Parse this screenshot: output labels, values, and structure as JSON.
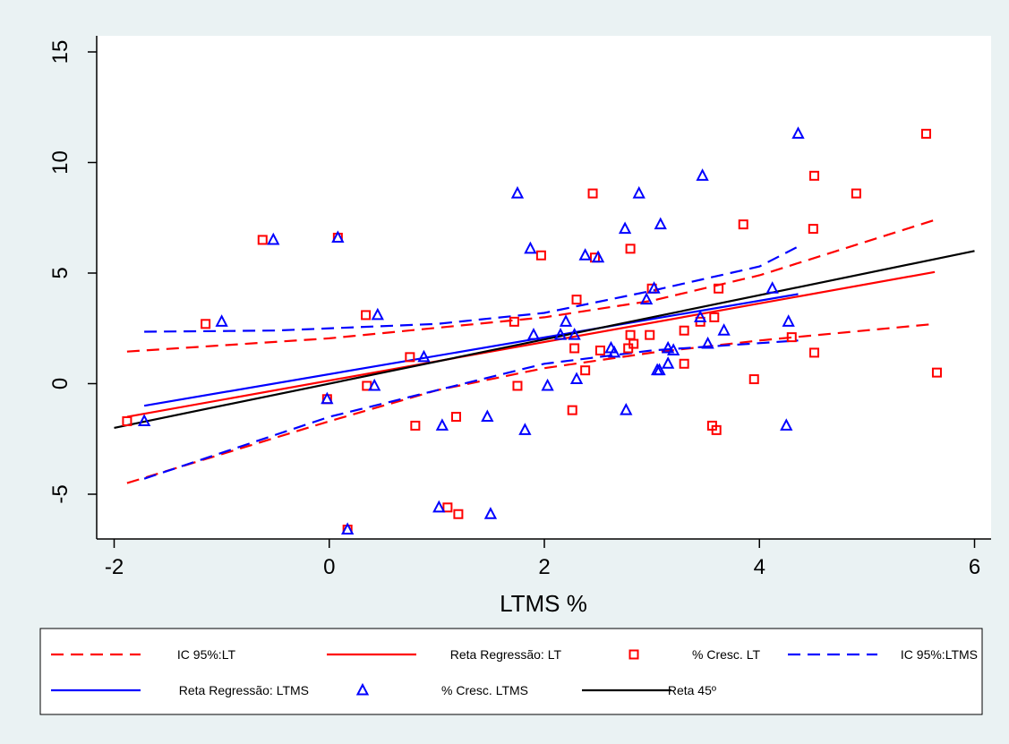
{
  "chart_data": {
    "type": "scatter",
    "xlabel": "LTMS %",
    "ylabel": "",
    "xlim": [
      -2,
      6
    ],
    "ylim": [
      -7,
      15
    ],
    "xticks": [
      -2,
      0,
      2,
      4,
      6
    ],
    "yticks": [
      -5,
      0,
      5,
      10,
      15
    ],
    "grid": false,
    "legend_position": "bottom",
    "colors": {
      "lt": "#ff0000",
      "ltms": "#0000ff",
      "ref": "#000000"
    },
    "legend": [
      {
        "label": "IC 95%:LT",
        "kind": "dashed",
        "color": "#ff0000"
      },
      {
        "label": "Reta Regressão: LT",
        "kind": "solid",
        "color": "#ff0000"
      },
      {
        "label": "% Cresc. LT",
        "kind": "square",
        "color": "#ff0000"
      },
      {
        "label": "IC 95%:LTMS",
        "kind": "dashed",
        "color": "#0000ff"
      },
      {
        "label": "Reta Regressão: LTMS",
        "kind": "solid",
        "color": "#0000ff"
      },
      {
        "label": "% Cresc. LTMS",
        "kind": "triangle",
        "color": "#0000ff"
      },
      {
        "label": "Reta 45º",
        "kind": "solid",
        "color": "#000000"
      }
    ],
    "series": [
      {
        "name": "% Cresc. LT",
        "marker": "square",
        "color": "#ff0000",
        "points": [
          [
            -1.88,
            -1.7
          ],
          [
            -1.15,
            2.7
          ],
          [
            -0.62,
            6.5
          ],
          [
            -0.02,
            -0.7
          ],
          [
            0.08,
            6.6
          ],
          [
            0.17,
            -6.6
          ],
          [
            0.34,
            3.1
          ],
          [
            0.35,
            -0.1
          ],
          [
            0.75,
            1.2
          ],
          [
            0.8,
            -1.9
          ],
          [
            1.1,
            -5.6
          ],
          [
            1.18,
            -1.5
          ],
          [
            1.2,
            -5.9
          ],
          [
            1.72,
            2.8
          ],
          [
            1.75,
            -0.1
          ],
          [
            1.97,
            5.8
          ],
          [
            2.26,
            -1.2
          ],
          [
            2.28,
            1.6
          ],
          [
            2.3,
            3.8
          ],
          [
            2.38,
            0.6
          ],
          [
            2.45,
            8.6
          ],
          [
            2.47,
            5.7
          ],
          [
            2.52,
            1.5
          ],
          [
            2.78,
            1.6
          ],
          [
            2.8,
            6.1
          ],
          [
            2.8,
            2.2
          ],
          [
            2.83,
            1.8
          ],
          [
            2.98,
            2.2
          ],
          [
            3.0,
            4.3
          ],
          [
            3.3,
            2.4
          ],
          [
            3.3,
            0.9
          ],
          [
            3.45,
            2.8
          ],
          [
            3.56,
            -1.9
          ],
          [
            3.58,
            3.0
          ],
          [
            3.6,
            -2.1
          ],
          [
            3.62,
            4.3
          ],
          [
            3.85,
            7.2
          ],
          [
            3.95,
            0.2
          ],
          [
            4.3,
            2.1
          ],
          [
            4.5,
            7.0
          ],
          [
            4.51,
            1.4
          ],
          [
            4.51,
            9.4
          ],
          [
            4.9,
            8.6
          ],
          [
            5.55,
            11.3
          ],
          [
            5.65,
            0.5
          ]
        ]
      },
      {
        "name": "% Cresc. LTMS",
        "marker": "triangle",
        "color": "#0000ff",
        "points": [
          [
            -1.72,
            -1.7
          ],
          [
            -1.0,
            2.8
          ],
          [
            -0.52,
            6.5
          ],
          [
            -0.02,
            -0.7
          ],
          [
            0.08,
            6.6
          ],
          [
            0.17,
            -6.6
          ],
          [
            0.42,
            -0.1
          ],
          [
            0.45,
            3.1
          ],
          [
            0.88,
            1.2
          ],
          [
            1.02,
            -5.6
          ],
          [
            1.05,
            -1.9
          ],
          [
            1.47,
            -1.5
          ],
          [
            1.5,
            -5.9
          ],
          [
            1.75,
            8.6
          ],
          [
            1.82,
            -2.1
          ],
          [
            1.87,
            6.1
          ],
          [
            1.9,
            2.2
          ],
          [
            2.03,
            -0.1
          ],
          [
            2.15,
            2.2
          ],
          [
            2.2,
            2.8
          ],
          [
            2.28,
            2.2
          ],
          [
            2.3,
            0.2
          ],
          [
            2.38,
            5.8
          ],
          [
            2.5,
            5.7
          ],
          [
            2.62,
            1.6
          ],
          [
            2.65,
            1.4
          ],
          [
            2.75,
            7.0
          ],
          [
            2.76,
            -1.2
          ],
          [
            2.88,
            8.6
          ],
          [
            2.95,
            3.8
          ],
          [
            3.02,
            4.3
          ],
          [
            3.05,
            0.6
          ],
          [
            3.07,
            0.6
          ],
          [
            3.08,
            7.2
          ],
          [
            3.15,
            0.9
          ],
          [
            3.15,
            1.6
          ],
          [
            3.2,
            1.5
          ],
          [
            3.45,
            3.0
          ],
          [
            3.47,
            9.4
          ],
          [
            3.52,
            1.8
          ],
          [
            3.67,
            2.4
          ],
          [
            4.12,
            4.3
          ],
          [
            4.25,
            -1.9
          ],
          [
            4.27,
            2.8
          ],
          [
            4.36,
            11.3
          ]
        ]
      }
    ],
    "lines": [
      {
        "name": "IC 95%:LT",
        "style": "dashed",
        "color": "#ff0000",
        "points": [
          [
            -1.88,
            1.45
          ],
          [
            0,
            2.05
          ],
          [
            2,
            3.0
          ],
          [
            3,
            3.75
          ],
          [
            4,
            4.9
          ],
          [
            5.63,
            7.4
          ]
        ]
      },
      {
        "name": "IC 95%:LT",
        "style": "dashed",
        "color": "#ff0000",
        "points": [
          [
            -1.88,
            -4.5
          ],
          [
            0,
            -1.7
          ],
          [
            1,
            -0.3
          ],
          [
            2,
            0.7
          ],
          [
            3,
            1.4
          ],
          [
            4,
            1.95
          ],
          [
            5.63,
            2.7
          ]
        ]
      },
      {
        "name": "Reta Regressão: LT",
        "style": "solid",
        "color": "#ff0000",
        "points": [
          [
            -1.88,
            -1.5
          ],
          [
            5.63,
            5.05
          ]
        ]
      },
      {
        "name": "IC 95%:LTMS",
        "style": "dashed",
        "color": "#0000ff",
        "points": [
          [
            -1.72,
            2.35
          ],
          [
            -0.5,
            2.4
          ],
          [
            1,
            2.7
          ],
          [
            2,
            3.2
          ],
          [
            3,
            4.2
          ],
          [
            4,
            5.3
          ],
          [
            4.36,
            6.2
          ]
        ]
      },
      {
        "name": "IC 95%:LTMS",
        "style": "dashed",
        "color": "#0000ff",
        "points": [
          [
            -1.72,
            -4.3
          ],
          [
            0,
            -1.5
          ],
          [
            1,
            -0.3
          ],
          [
            2,
            0.9
          ],
          [
            3,
            1.5
          ],
          [
            4.36,
            1.95
          ]
        ]
      },
      {
        "name": "Reta Regressão: LTMS",
        "style": "solid",
        "color": "#0000ff",
        "points": [
          [
            -1.72,
            -1.0
          ],
          [
            4.36,
            4.05
          ]
        ]
      },
      {
        "name": "Reta 45º",
        "style": "solid",
        "color": "#000000",
        "points": [
          [
            -2,
            -2
          ],
          [
            6,
            6
          ]
        ]
      }
    ]
  }
}
